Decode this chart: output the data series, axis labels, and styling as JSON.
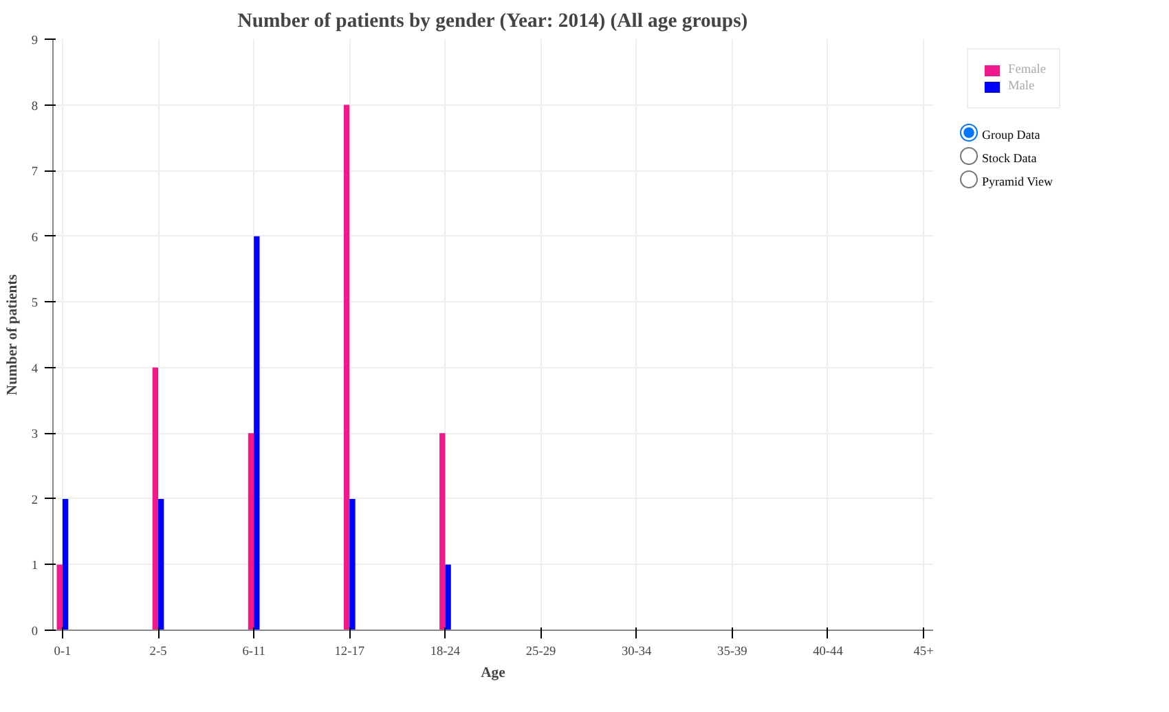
{
  "chart_data": {
    "type": "bar",
    "title": "Number of patients by gender (Year: 2014) (All age groups)",
    "xlabel": "Age",
    "ylabel": "Number of patients",
    "categories": [
      "0-1",
      "2-5",
      "6-11",
      "12-17",
      "18-24",
      "25-29",
      "30-34",
      "35-39",
      "40-44",
      "45+"
    ],
    "series": [
      {
        "name": "Female",
        "color": "#f0198c",
        "values": [
          1,
          4,
          3,
          8,
          3,
          0,
          0,
          0,
          0,
          0
        ]
      },
      {
        "name": "Male",
        "color": "#0000ff",
        "values": [
          2,
          2,
          6,
          2,
          1,
          0,
          0,
          0,
          0,
          0
        ]
      }
    ],
    "ylim": [
      0,
      9
    ],
    "yticks": [
      0,
      1,
      2,
      3,
      4,
      5,
      6,
      7,
      8,
      9
    ],
    "grid": true,
    "legend": "top right",
    "annotations": [
      "Group Data",
      "Stock Data",
      "Pyramid View"
    ]
  }
}
